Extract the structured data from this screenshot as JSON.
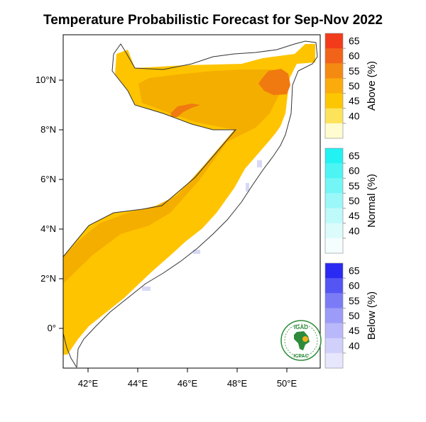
{
  "title": "Temperature Probabilistic Forecast for Sep-Nov 2022",
  "map": {
    "x_ticks": [
      "42°E",
      "44°E",
      "46°E",
      "48°E",
      "50°E"
    ],
    "y_ticks": [
      "10°N",
      "8°N",
      "6°N",
      "4°N",
      "2°N",
      "0°"
    ],
    "colors": {
      "above_45": "#ffc400",
      "above_50": "#f4ae00",
      "above_60": "#f07a10",
      "below_40": "#d8d8f6",
      "coast": "#333333"
    }
  },
  "colorbars": [
    {
      "title": "Above (%)",
      "labels": [
        "65",
        "60",
        "55",
        "50",
        "45",
        "40"
      ],
      "colors": [
        "#f23b1a",
        "#f2631a",
        "#f58a12",
        "#fbab0c",
        "#fcc700",
        "#fde35a",
        "#fffcd0"
      ]
    },
    {
      "title": "Normal (%)",
      "labels": [
        "65",
        "60",
        "55",
        "50",
        "45",
        "40"
      ],
      "colors": [
        "#22f2f2",
        "#4df4f4",
        "#75f6f6",
        "#9cf8f8",
        "#bffafa",
        "#dcfcfc",
        "#f4fefe"
      ]
    },
    {
      "title": "Below (%)",
      "labels": [
        "65",
        "60",
        "55",
        "50",
        "45",
        "40"
      ],
      "colors": [
        "#2a2af2",
        "#5555f4",
        "#7b7bf6",
        "#9c9cf8",
        "#b8b8fa",
        "#d0d0fb",
        "#e6e6fd"
      ]
    }
  ],
  "logo": {
    "top_text": "IGAD",
    "bottom_text": "ICPAC"
  }
}
